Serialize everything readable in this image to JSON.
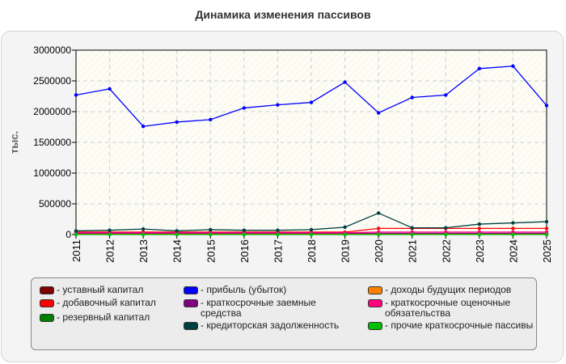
{
  "chart_data": {
    "type": "line",
    "title": "Динамика изменения пассивов",
    "ylabel": "тыс.",
    "xlabel": "",
    "ylim": [
      0,
      3000000
    ],
    "yticks": [
      0,
      500000,
      1000000,
      1500000,
      2000000,
      2500000,
      3000000
    ],
    "categories": [
      "2011",
      "2012",
      "2013",
      "2014",
      "2015",
      "2016",
      "2017",
      "2018",
      "2019",
      "2020",
      "2021",
      "2022",
      "2023",
      "2024",
      "2025"
    ],
    "grid": true,
    "legend_position": "bottom",
    "series": [
      {
        "name": "- уставный капитал",
        "color": "#7f0000",
        "values": [
          10000,
          10000,
          10000,
          10000,
          10000,
          10000,
          10000,
          10000,
          10000,
          10000,
          10000,
          10000,
          10000,
          10000,
          10000
        ]
      },
      {
        "name": "- добавочный капитал",
        "color": "#ff0000",
        "values": [
          40000,
          40000,
          40000,
          40000,
          40000,
          40000,
          40000,
          40000,
          40000,
          100000,
          100000,
          100000,
          100000,
          100000,
          100000
        ]
      },
      {
        "name": "- резервный капитал",
        "color": "#007f00",
        "values": [
          1000,
          1000,
          1000,
          1000,
          1000,
          1000,
          1000,
          1000,
          1000,
          1000,
          1000,
          1000,
          1000,
          1000,
          1000
        ]
      },
      {
        "name": "- прибыль (убыток)",
        "color": "#0000ff",
        "values": [
          2270000,
          2370000,
          1760000,
          1830000,
          1870000,
          2060000,
          2110000,
          2150000,
          2480000,
          1980000,
          2230000,
          2270000,
          2700000,
          2740000,
          2100000
        ]
      },
      {
        "name": "- краткосрочные заемные средства",
        "color": "#7f007f",
        "values": [
          20000,
          20000,
          20000,
          20000,
          20000,
          20000,
          20000,
          20000,
          20000,
          20000,
          20000,
          20000,
          20000,
          20000,
          20000
        ]
      },
      {
        "name": "- кредиторская задолженность",
        "color": "#004040",
        "values": [
          60000,
          70000,
          90000,
          60000,
          80000,
          70000,
          70000,
          80000,
          120000,
          350000,
          110000,
          110000,
          170000,
          190000,
          210000
        ]
      },
      {
        "name": "- доходы будущих периодов",
        "color": "#ff7f00",
        "values": [
          5000,
          5000,
          5000,
          5000,
          5000,
          5000,
          5000,
          5000,
          5000,
          5000,
          5000,
          5000,
          5000,
          5000,
          5000
        ]
      },
      {
        "name": "- краткосрочные оценочные обязательства",
        "color": "#ff007f",
        "values": [
          30000,
          30000,
          30000,
          30000,
          30000,
          30000,
          30000,
          30000,
          30000,
          40000,
          40000,
          40000,
          40000,
          40000,
          40000
        ]
      },
      {
        "name": "- прочие краткосрочные пассивы",
        "color": "#00bf00",
        "values": [
          2000,
          2000,
          2000,
          2000,
          2000,
          2000,
          2000,
          2000,
          2000,
          2000,
          2000,
          2000,
          2000,
          2000,
          2000
        ]
      }
    ]
  }
}
